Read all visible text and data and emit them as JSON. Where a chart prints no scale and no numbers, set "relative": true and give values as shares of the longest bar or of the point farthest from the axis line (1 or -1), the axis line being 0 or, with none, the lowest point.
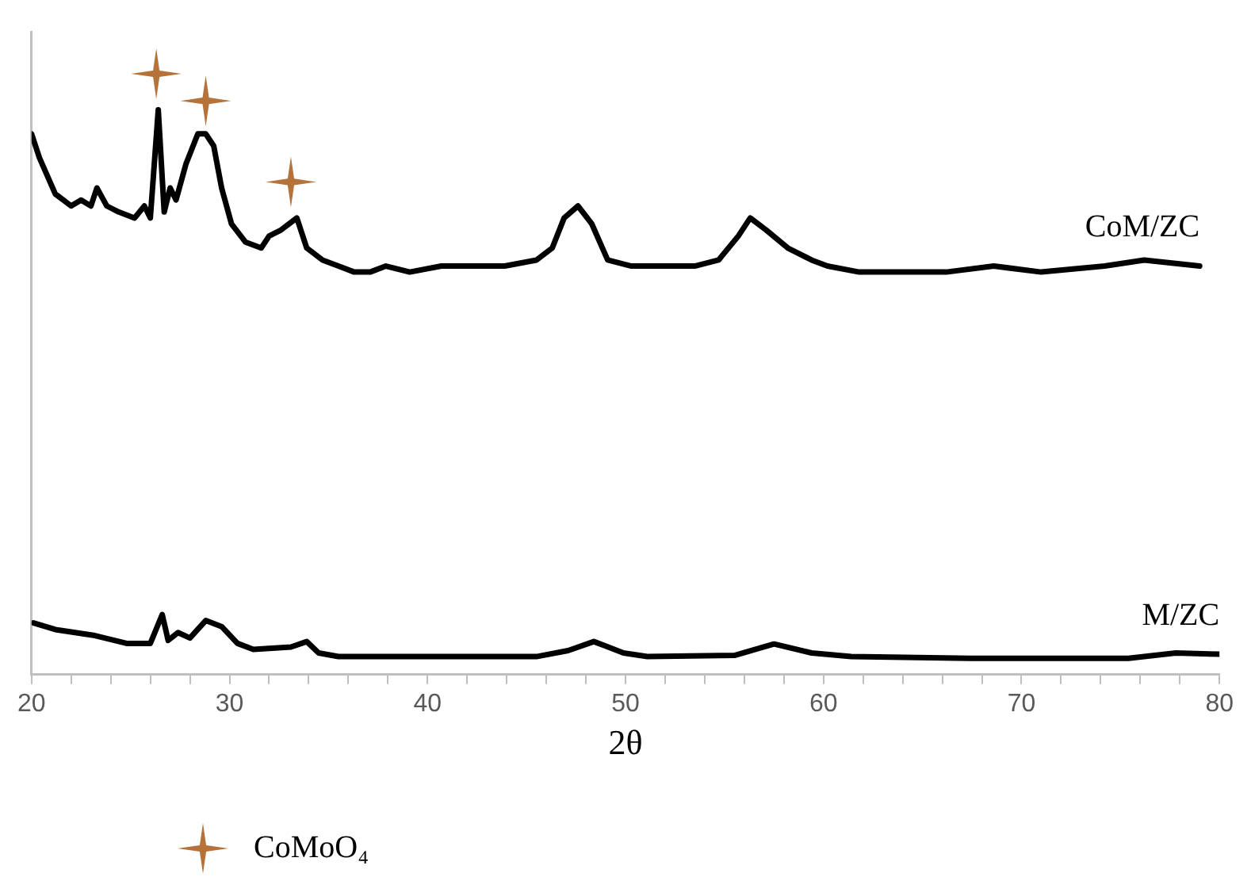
{
  "chart_data": {
    "type": "line",
    "relative": true,
    "xlabel": "2θ",
    "xlim": [
      20,
      80
    ],
    "xticks": [
      20,
      {
        "value": 22,
        "label": null
      },
      {
        "value": 24,
        "label": null
      },
      {
        "value": 26,
        "label": null
      },
      {
        "value": 28,
        "label": null
      },
      30,
      {
        "value": 32,
        "label": null
      },
      {
        "value": 34,
        "label": null
      },
      {
        "value": 36,
        "label": null
      },
      {
        "value": 38,
        "label": null
      },
      40,
      {
        "value": 42,
        "label": null
      },
      {
        "value": 44,
        "label": null
      },
      {
        "value": 46,
        "label": null
      },
      {
        "value": 48,
        "label": null
      },
      50,
      {
        "value": 52,
        "label": null
      },
      {
        "value": 54,
        "label": null
      },
      {
        "value": 56,
        "label": null
      },
      {
        "value": 58,
        "label": null
      },
      60,
      {
        "value": 62,
        "label": null
      },
      {
        "value": 64,
        "label": null
      },
      {
        "value": 66,
        "label": null
      },
      {
        "value": 68,
        "label": null
      },
      70,
      {
        "value": 72,
        "label": null
      },
      {
        "value": 74,
        "label": null
      },
      {
        "value": 76,
        "label": null
      },
      {
        "value": 78,
        "label": null
      },
      80
    ],
    "grid": false,
    "legend": "bottom",
    "marker": "none",
    "line_style": "solid",
    "tick_labels": "x",
    "series": [
      {
        "name": "CoM/ZC",
        "color": "#000000",
        "x": [
          20,
          20.4,
          21.2,
          22,
          22.5,
          23,
          23.3,
          23.8,
          24.4,
          25.2,
          25.7,
          26,
          26.4,
          26.7,
          27,
          27.3,
          27.8,
          28.4,
          28.8,
          29.2,
          29.6,
          30.1,
          30.8,
          31.6,
          32,
          32.6,
          33.4,
          33.9,
          34.7,
          35.5,
          36.3,
          37.1,
          37.9,
          39.1,
          40.7,
          42.3,
          43.9,
          45.5,
          46.3,
          46.9,
          47.6,
          48.3,
          49.1,
          50.3,
          51.9,
          53.5,
          54.7,
          55.7,
          56.3,
          57.1,
          58.2,
          59.4,
          60.2,
          61.8,
          64.2,
          66.2,
          68.6,
          71,
          74.2,
          76.2,
          79
        ],
        "values": [
          0.9,
          0.86,
          0.8,
          0.78,
          0.79,
          0.78,
          0.81,
          0.78,
          0.77,
          0.76,
          0.78,
          0.76,
          0.94,
          0.77,
          0.81,
          0.79,
          0.85,
          0.9,
          0.9,
          0.88,
          0.81,
          0.75,
          0.72,
          0.71,
          0.73,
          0.74,
          0.76,
          0.71,
          0.69,
          0.68,
          0.67,
          0.67,
          0.68,
          0.67,
          0.68,
          0.68,
          0.68,
          0.69,
          0.71,
          0.76,
          0.78,
          0.75,
          0.69,
          0.68,
          0.68,
          0.68,
          0.69,
          0.73,
          0.76,
          0.74,
          0.71,
          0.69,
          0.68,
          0.67,
          0.67,
          0.67,
          0.68,
          0.67,
          0.68,
          0.69,
          0.68
        ]
      },
      {
        "name": "M/ZC",
        "color": "#000000",
        "x": [
          20.1,
          21.2,
          23.2,
          24.8,
          26,
          26.6,
          26.9,
          27.4,
          28,
          28.8,
          29.6,
          30.4,
          31.2,
          33.1,
          33.9,
          34.5,
          35.5,
          39.5,
          45.5,
          47.1,
          48.4,
          49.9,
          51.1,
          55.5,
          57.5,
          59.4,
          61.4,
          67.4,
          75.4,
          77.8,
          80
        ],
        "values": [
          0.086,
          0.075,
          0.065,
          0.052,
          0.052,
          0.1,
          0.057,
          0.07,
          0.061,
          0.09,
          0.08,
          0.052,
          0.042,
          0.046,
          0.055,
          0.036,
          0.03,
          0.03,
          0.03,
          0.04,
          0.055,
          0.036,
          0.03,
          0.032,
          0.051,
          0.036,
          0.03,
          0.027,
          0.027,
          0.036,
          0.034
        ]
      },
      {
        "name": "CoMoO₄",
        "type": "scatter",
        "marker": "star",
        "color": "#b5733a",
        "x": [
          26.3,
          28.8,
          33.1
        ],
        "values": [
          1,
          0.955,
          0.82
        ]
      }
    ]
  }
}
